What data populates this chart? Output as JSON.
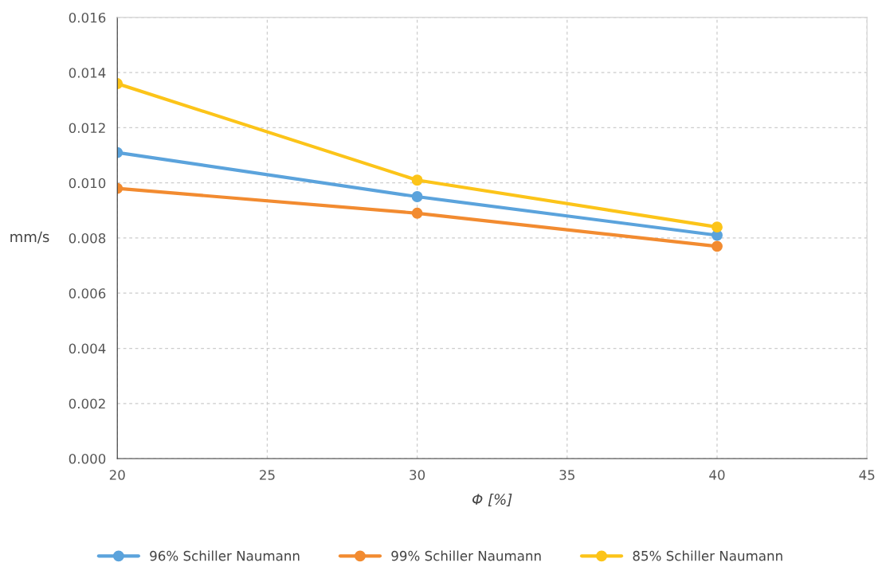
{
  "chart_data": {
    "type": "line",
    "xlabel": "Φ [%]",
    "ylabel": "mm/s",
    "x": [
      20,
      30,
      40
    ],
    "series": [
      {
        "name": "96% Schiller Naumann",
        "color": "#5ba3dc",
        "values": [
          0.0111,
          0.0095,
          0.0081
        ]
      },
      {
        "name": "99% Schiller Naumann",
        "color": "#f28b30",
        "values": [
          0.0098,
          0.0089,
          0.0077
        ]
      },
      {
        "name": "85% Schiller Naumann",
        "color": "#fcc419",
        "values": [
          0.0136,
          0.0101,
          0.0084
        ]
      }
    ],
    "xlim": [
      20,
      45
    ],
    "xticks": [
      20,
      25,
      30,
      35,
      40,
      45
    ],
    "ylim": [
      0,
      0.016
    ],
    "yticks": [
      {
        "value": 0,
        "label": "0.000"
      },
      {
        "value": 0.002,
        "label": "0.002"
      },
      {
        "value": 0.004,
        "label": "0.004"
      },
      {
        "value": 0.006,
        "label": "0.006"
      },
      {
        "value": 0.008,
        "label": "0.008"
      },
      {
        "value": 0.01,
        "label": "0.010"
      },
      {
        "value": 0.012,
        "label": "0.012"
      },
      {
        "value": 0.014,
        "label": "0.014"
      },
      {
        "value": 0.016,
        "label": "0.016"
      }
    ],
    "grid": true,
    "legend": "bottom",
    "marker": "circle",
    "line_style": "solid"
  }
}
